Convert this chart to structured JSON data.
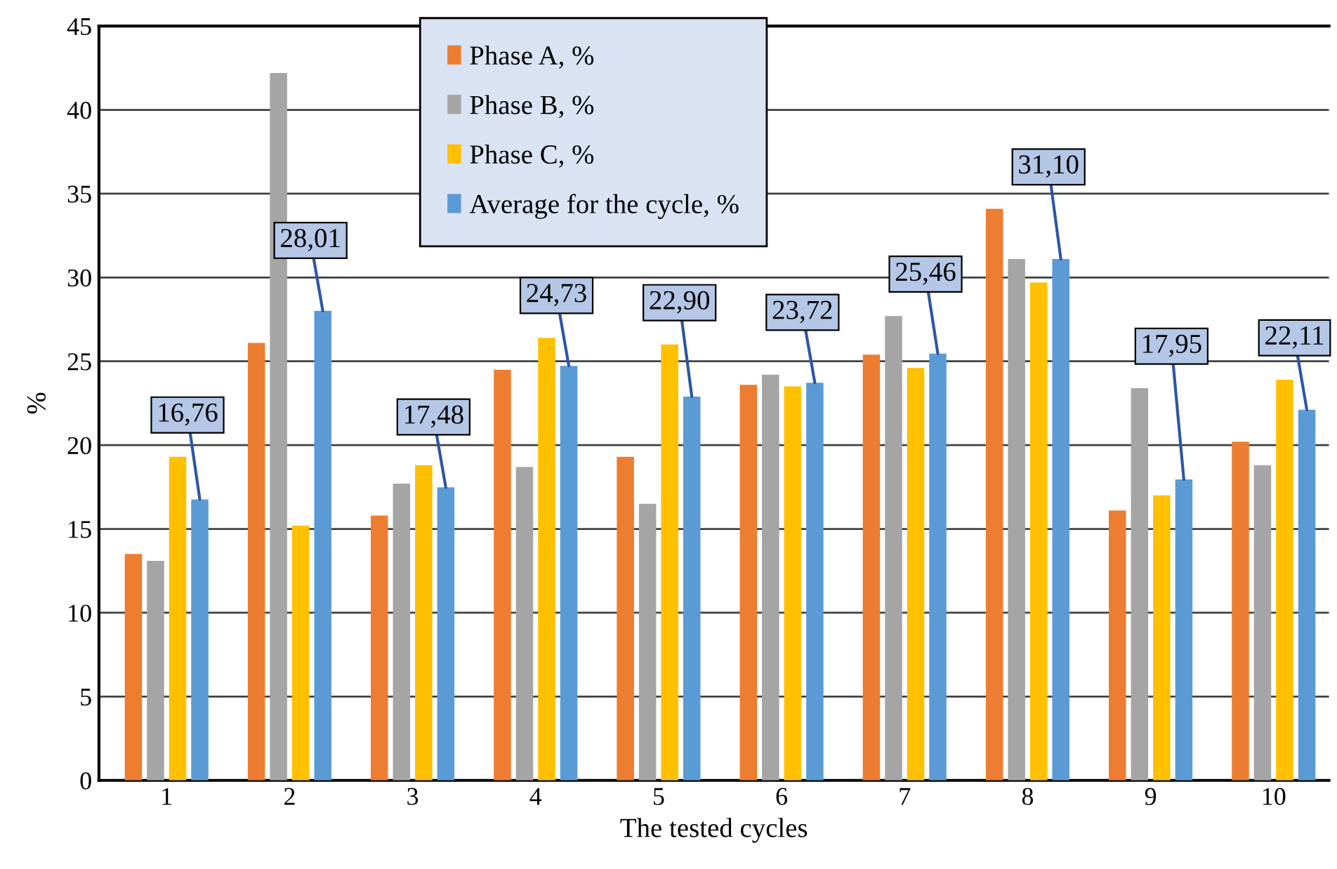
{
  "chart_data": {
    "type": "bar",
    "xlabel": "The tested cycles",
    "ylabel": "%",
    "categories": [
      "1",
      "2",
      "3",
      "4",
      "5",
      "6",
      "7",
      "8",
      "9",
      "10"
    ],
    "series": [
      {
        "name": "Phase A, %",
        "color": "#ed7d31",
        "values": [
          13.5,
          26.1,
          15.8,
          24.5,
          19.3,
          23.6,
          25.4,
          34.1,
          16.1,
          20.2
        ]
      },
      {
        "name": "Phase B, %",
        "color": "#a5a5a5",
        "values": [
          13.1,
          42.2,
          17.7,
          18.7,
          16.5,
          24.2,
          27.7,
          31.1,
          23.4,
          18.8
        ]
      },
      {
        "name": "Phase C, %",
        "color": "#ffc000",
        "values": [
          19.3,
          15.2,
          18.8,
          26.4,
          26.0,
          23.5,
          24.6,
          29.7,
          17.0,
          23.9
        ]
      },
      {
        "name": "Average for the cycle, %",
        "color": "#5b9bd5",
        "values": [
          16.76,
          28.01,
          17.48,
          24.73,
          22.9,
          23.72,
          25.46,
          31.1,
          17.95,
          22.11
        ],
        "value_labels": [
          "16,76",
          "28,01",
          "17,48",
          "24,73",
          "22,90",
          "23,72",
          "25,46",
          "31,10",
          "17,95",
          "22,11"
        ]
      }
    ],
    "ylim": [
      0,
      45
    ],
    "yticks": [
      0,
      5,
      10,
      15,
      20,
      25,
      30,
      35,
      40,
      45
    ],
    "grid": "y",
    "legend": "top"
  }
}
